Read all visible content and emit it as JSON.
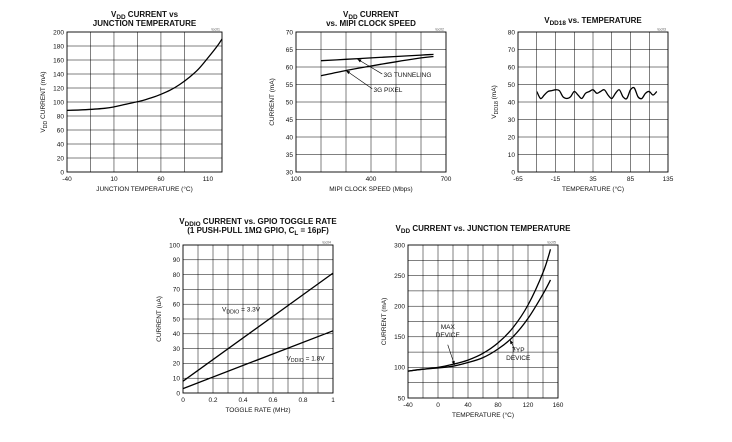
{
  "chart_data": [
    {
      "id": "c1",
      "type": "line",
      "tag": "toc01",
      "title_lines": [
        [
          {
            "t": "V"
          },
          {
            "t": "DD",
            "sub": true
          },
          {
            "t": " CURRENT vs"
          }
        ],
        [
          {
            "t": "JUNCTION TEMPERATURE"
          }
        ]
      ],
      "xlabel": [
        {
          "t": "JUNCTION TEMPERATURE (°C)"
        }
      ],
      "ylabel": [
        {
          "t": "V"
        },
        {
          "t": "DD",
          "sub": true
        },
        {
          "t": " CURRENT (mA)"
        }
      ],
      "xlim": [
        -40,
        125
      ],
      "ylim": [
        0,
        200
      ],
      "xticks": [
        -40,
        10,
        60,
        110
      ],
      "yticks": [
        0,
        20,
        40,
        60,
        80,
        100,
        120,
        140,
        160,
        180,
        200
      ],
      "grid": true,
      "series": [
        {
          "x": [
            -40,
            -20,
            0,
            10,
            20,
            30,
            40,
            50,
            60,
            70,
            80,
            90,
            100,
            110,
            120,
            125
          ],
          "y": [
            88,
            89,
            91,
            93,
            96,
            99,
            102,
            106,
            111,
            117,
            125,
            135,
            147,
            163,
            180,
            190
          ]
        }
      ],
      "annotations": []
    },
    {
      "id": "c2",
      "type": "line",
      "tag": "toc02",
      "title_lines": [
        [
          {
            "t": "V"
          },
          {
            "t": "DD",
            "sub": true
          },
          {
            "t": " CURRENT"
          }
        ],
        [
          {
            "t": "vs. MIPI CLOCK SPEED"
          }
        ]
      ],
      "xlabel": [
        {
          "t": "MIPI CLOCK SPEED (Mbps)"
        }
      ],
      "ylabel": [
        {
          "t": "CURRENT (mA)"
        }
      ],
      "xlim": [
        100,
        700
      ],
      "ylim": [
        30,
        70
      ],
      "xticks": [
        100,
        400,
        700
      ],
      "yticks": [
        30,
        35,
        40,
        45,
        50,
        55,
        60,
        65,
        70
      ],
      "grid": true,
      "series": [
        {
          "name": "3G TUNNELING",
          "x": [
            200,
            300,
            400,
            500,
            600,
            650
          ],
          "y": [
            61.8,
            62.2,
            62.6,
            63.0,
            63.4,
            63.6
          ]
        },
        {
          "name": "3G PIXEL",
          "x": [
            200,
            300,
            400,
            500,
            600,
            650
          ],
          "y": [
            57.5,
            59.0,
            60.3,
            61.5,
            62.6,
            63.0
          ]
        }
      ],
      "annotations": [
        {
          "lines": [
            [
              {
                "t": "3G TUNNELING"
              }
            ]
          ],
          "tx": 450,
          "ty": 57.2,
          "ax": 345,
          "ay": 62.3,
          "anchor": "start",
          "arrow_from": [
            445,
            58.0
          ]
        },
        {
          "lines": [
            [
              {
                "t": "3G PIXEL"
              }
            ]
          ],
          "tx": 410,
          "ty": 52.8,
          "ax": 300,
          "ay": 59.0,
          "anchor": "start",
          "arrow_from": [
            405,
            53.8
          ]
        }
      ]
    },
    {
      "id": "c3",
      "type": "line",
      "tag": "toc03",
      "title_lines": [
        [
          {
            "t": "V"
          },
          {
            "t": "DD18",
            "sub": true
          },
          {
            "t": " vs. TEMPERATURE"
          }
        ]
      ],
      "xlabel": [
        {
          "t": "TEMPERATURE (°C)"
        }
      ],
      "ylabel": [
        {
          "t": "V"
        },
        {
          "t": "DD18",
          "sub": true
        },
        {
          "t": " (mA)"
        }
      ],
      "xlim": [
        -65,
        135
      ],
      "ylim": [
        0,
        80
      ],
      "xticks": [
        -65,
        -15,
        35,
        85,
        135
      ],
      "yticks": [
        0,
        10,
        20,
        30,
        40,
        50,
        60,
        70,
        80
      ],
      "grid": true,
      "series": [
        {
          "x": [
            -40,
            -35,
            -30,
            -25,
            -20,
            -15,
            -10,
            -5,
            0,
            5,
            10,
            15,
            20,
            25,
            30,
            35,
            40,
            45,
            50,
            55,
            60,
            65,
            70,
            75,
            80,
            85,
            90,
            95,
            100,
            105,
            110,
            115,
            120
          ],
          "y": [
            46,
            42,
            44,
            46,
            46.5,
            47,
            46.5,
            43,
            42,
            43,
            46,
            44,
            42,
            45,
            46,
            47,
            45,
            46,
            47,
            44,
            42,
            45,
            47,
            43,
            42,
            47,
            48,
            43,
            42,
            45,
            46,
            44,
            46
          ]
        }
      ],
      "annotations": []
    },
    {
      "id": "c4",
      "type": "line",
      "tag": "toc04",
      "title_lines": [
        [
          {
            "t": "V"
          },
          {
            "t": "DDIO",
            "sub": true
          },
          {
            "t": " CURRENT vs. GPIO TOGGLE RATE"
          }
        ],
        [
          {
            "t": "(1 PUSH-PULL 1MΩ GPIO, C"
          },
          {
            "t": "L",
            "sub": true
          },
          {
            "t": " = 16pF)"
          }
        ]
      ],
      "xlabel": [
        {
          "t": "TOGGLE RATE (MHz)"
        }
      ],
      "ylabel": [
        {
          "t": "CURRENT (uA)"
        }
      ],
      "xlim": [
        0,
        1
      ],
      "ylim": [
        0,
        100
      ],
      "xticks": [
        0,
        0.2,
        0.4,
        0.6,
        0.8,
        1
      ],
      "yticks": [
        0,
        10,
        20,
        30,
        40,
        50,
        60,
        70,
        80,
        90,
        100
      ],
      "grid": true,
      "series": [
        {
          "name": "V_DDIO = 3.3V",
          "x": [
            0,
            1
          ],
          "y": [
            8,
            81
          ]
        },
        {
          "name": "V_DDIO = 1.8V",
          "x": [
            0,
            1
          ],
          "y": [
            3,
            42
          ]
        }
      ],
      "annotations": [
        {
          "lines": [
            [
              {
                "t": "V"
              },
              {
                "t": "DDIO",
                "sub": true
              },
              {
                "t": " = 3.3V"
              }
            ]
          ],
          "tx": 0.26,
          "ty": 55,
          "anchor": "start"
        },
        {
          "lines": [
            [
              {
                "t": "V"
              },
              {
                "t": "DDIO",
                "sub": true
              },
              {
                "t": " = 1.8V"
              }
            ]
          ],
          "tx": 0.69,
          "ty": 22,
          "anchor": "start"
        }
      ]
    },
    {
      "id": "c5",
      "type": "line",
      "tag": "toc05",
      "title_lines": [
        [
          {
            "t": "V"
          },
          {
            "t": "DD",
            "sub": true
          },
          {
            "t": " CURRENT vs. JUNCTION TEMPERATURE"
          }
        ]
      ],
      "xlabel": [
        {
          "t": "TEMPERATURE (°C)"
        }
      ],
      "ylabel": [
        {
          "t": "CURRENT (mA)"
        }
      ],
      "xlim": [
        -40,
        160
      ],
      "ylim": [
        50,
        300
      ],
      "xticks": [
        -40,
        0,
        40,
        80,
        120,
        160
      ],
      "yticks": [
        50,
        100,
        150,
        200,
        250,
        300
      ],
      "grid": true,
      "series": [
        {
          "name": "MAX DEVICE",
          "x": [
            -40,
            -20,
            0,
            20,
            40,
            60,
            80,
            100,
            120,
            140,
            150
          ],
          "y": [
            94,
            97,
            100,
            105,
            112,
            123,
            140,
            165,
            202,
            255,
            293
          ]
        },
        {
          "name": "TYP DEVICE",
          "x": [
            -40,
            -20,
            0,
            20,
            40,
            60,
            80,
            100,
            120,
            140,
            150
          ],
          "y": [
            94,
            97,
            99,
            102,
            108,
            116,
            130,
            150,
            180,
            220,
            243
          ]
        }
      ],
      "annotations": [
        {
          "lines": [
            [
              {
                "t": "MAX"
              }
            ],
            [
              {
                "t": "DEVICE"
              }
            ]
          ],
          "tx": 13,
          "ty": 163,
          "anchor": "middle",
          "ax": 22,
          "ay": 104,
          "arrow_from": [
            13,
            137
          ]
        },
        {
          "lines": [
            [
              {
                "t": "TYP"
              }
            ],
            [
              {
                "t": "DEVICE"
              }
            ]
          ],
          "tx": 107,
          "ty": 125,
          "anchor": "middle",
          "ax": 96,
          "ay": 145,
          "arrow_from": [
            103,
            128
          ]
        }
      ]
    }
  ]
}
